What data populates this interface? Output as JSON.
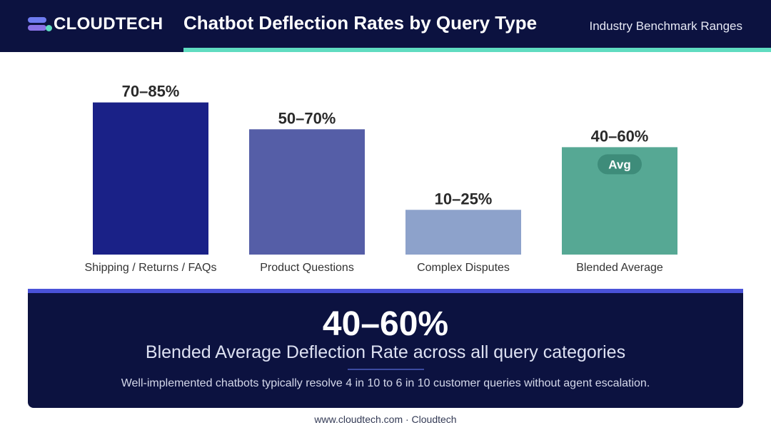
{
  "header": {
    "logo_text": "CLOUDTECH",
    "title": "Chatbot Deflection Rates by Query Type",
    "subtitle": "Industry Benchmark Ranges"
  },
  "chart_data": {
    "type": "bar",
    "title": "Chatbot Deflection Rates by Query Type",
    "xlabel": "",
    "ylabel": "",
    "categories": [
      "Shipping / Returns / FAQs",
      "Product Questions",
      "Complex Disputes",
      "Blended Average"
    ],
    "ranges": [
      [
        70,
        85
      ],
      [
        50,
        70
      ],
      [
        10,
        25
      ],
      [
        40,
        60
      ]
    ],
    "values": [
      85,
      70,
      25,
      60
    ],
    "data_labels": [
      "70–85%",
      "50–70%",
      "10–25%",
      "40–60%"
    ],
    "badge": {
      "category_index": 3,
      "text": "Avg"
    },
    "colors": [
      "#1a2187",
      "#555ea7",
      "#8da2cb",
      "#56a894"
    ],
    "ylim": [
      0,
      100
    ],
    "grid": false,
    "legend": "none"
  },
  "summary": {
    "value": "40–60%",
    "label": "Blended Average Deflection Rate across all query categories",
    "description": "Well-implemented chatbots typically resolve 4 in 10 to 6 in 10 customer queries without agent escalation."
  },
  "footer": {
    "text": "www.cloudtech.com · Cloudtech"
  }
}
